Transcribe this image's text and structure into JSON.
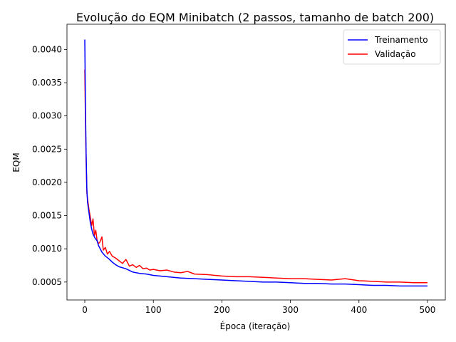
{
  "chart_data": {
    "type": "line",
    "title": "Evolução do EQM Minibatch (2 passos, tamanho de batch 200)",
    "xlabel": "Época (iteração)",
    "ylabel": "EQM",
    "xlim": [
      -26,
      526
    ],
    "ylim": [
      0.00023,
      0.00438
    ],
    "xticks": [
      0,
      100,
      200,
      300,
      400,
      500
    ],
    "xtick_labels": [
      "0",
      "100",
      "200",
      "300",
      "400",
      "500"
    ],
    "yticks": [
      0.0005,
      0.001,
      0.0015,
      0.002,
      0.0025,
      0.003,
      0.0035,
      0.004
    ],
    "ytick_labels": [
      "0.0005",
      "0.0010",
      "0.0015",
      "0.0020",
      "0.0025",
      "0.0030",
      "0.0035",
      "0.0040"
    ],
    "grid": false,
    "legend_position": "top-right",
    "series": [
      {
        "name": "Treinamento",
        "color": "#0000ff",
        "x": [
          0,
          1,
          2,
          3,
          4,
          6,
          8,
          10,
          12,
          15,
          18,
          20,
          25,
          30,
          35,
          40,
          45,
          50,
          60,
          70,
          80,
          90,
          100,
          120,
          140,
          160,
          180,
          200,
          220,
          240,
          260,
          280,
          300,
          320,
          340,
          360,
          380,
          400,
          420,
          440,
          460,
          480,
          500
        ],
        "y": [
          0.00415,
          0.0031,
          0.0024,
          0.0019,
          0.0017,
          0.00155,
          0.0014,
          0.0013,
          0.00122,
          0.00116,
          0.00112,
          0.00105,
          0.00095,
          0.00089,
          0.00085,
          0.0008,
          0.00076,
          0.00073,
          0.0007,
          0.00065,
          0.00063,
          0.00062,
          0.0006,
          0.00058,
          0.00056,
          0.00055,
          0.00054,
          0.00053,
          0.00052,
          0.00051,
          0.0005,
          0.0005,
          0.00049,
          0.00048,
          0.00048,
          0.00047,
          0.00047,
          0.00046,
          0.00045,
          0.00045,
          0.00044,
          0.00044,
          0.00044
        ]
      },
      {
        "name": "Validação",
        "color": "#ff0000",
        "x": [
          0,
          1,
          2,
          3,
          4,
          6,
          8,
          10,
          12,
          14,
          16,
          18,
          20,
          22,
          25,
          27,
          30,
          33,
          36,
          40,
          45,
          50,
          55,
          60,
          65,
          70,
          75,
          80,
          85,
          90,
          95,
          100,
          110,
          120,
          130,
          140,
          150,
          160,
          180,
          200,
          220,
          240,
          260,
          280,
          300,
          320,
          340,
          360,
          380,
          400,
          420,
          440,
          460,
          480,
          500
        ],
        "y": [
          0.0037,
          0.0029,
          0.0023,
          0.00185,
          0.00175,
          0.0016,
          0.00148,
          0.00135,
          0.00145,
          0.0012,
          0.00128,
          0.00112,
          0.00108,
          0.0011,
          0.00118,
          0.00098,
          0.00102,
          0.00092,
          0.00096,
          0.00089,
          0.00086,
          0.00082,
          0.00078,
          0.00084,
          0.00074,
          0.00076,
          0.00072,
          0.00075,
          0.0007,
          0.00071,
          0.00068,
          0.00069,
          0.00067,
          0.00068,
          0.00065,
          0.00064,
          0.00066,
          0.00062,
          0.00061,
          0.00059,
          0.00058,
          0.00058,
          0.00057,
          0.00056,
          0.00055,
          0.00055,
          0.00054,
          0.00053,
          0.00055,
          0.00052,
          0.00051,
          0.0005,
          0.0005,
          0.00049,
          0.00049
        ]
      }
    ]
  }
}
